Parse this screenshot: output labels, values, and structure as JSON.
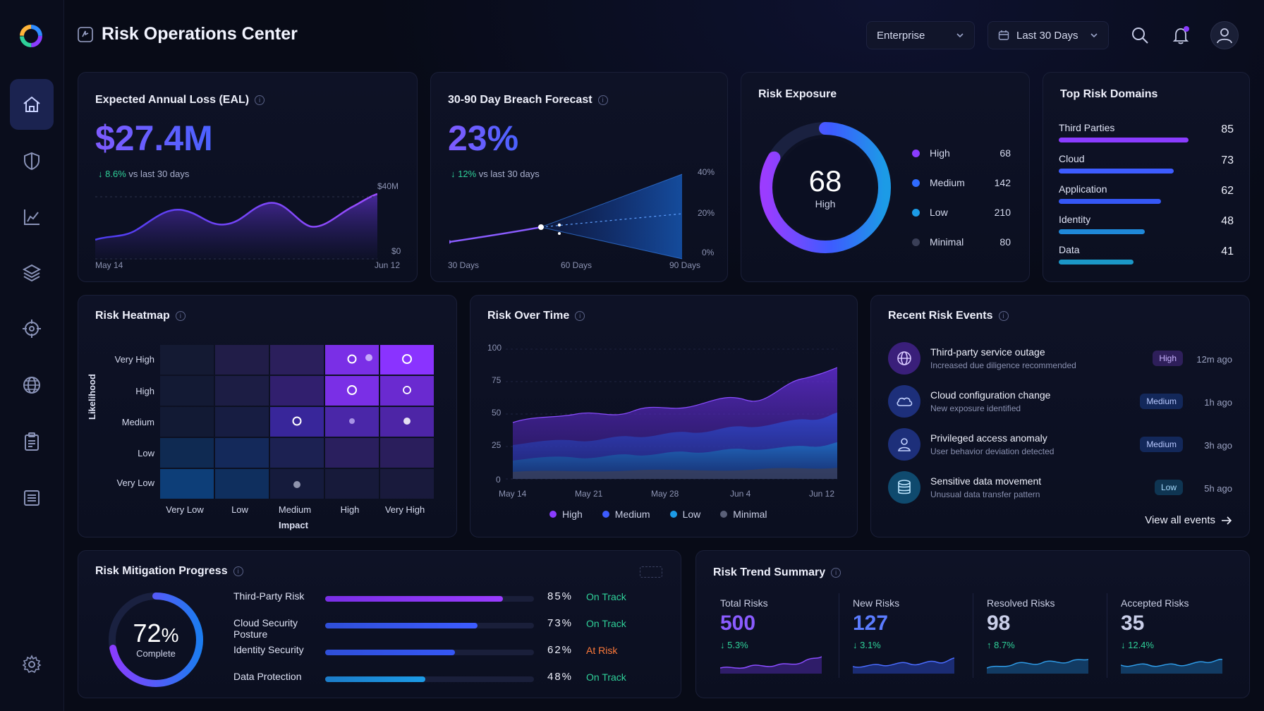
{
  "header": {
    "title": "Risk Operations Center",
    "org_select": "Enterprise",
    "date_select": "Last 30 Days"
  },
  "eal": {
    "title": "Expected Annual Loss (EAL)",
    "value": "$27.4M",
    "delta": "8.6%",
    "delta_text": "vs last 30 days",
    "y_max": "$40M",
    "y_min": "$0",
    "x_start": "May 14",
    "x_end": "Jun 12"
  },
  "forecast": {
    "title": "30-90 Day Breach Forecast",
    "value": "23%",
    "delta": "12%",
    "delta_text": "vs last 30 days",
    "y_ticks": [
      "40%",
      "20%",
      "0%"
    ],
    "x_ticks": [
      "30 Days",
      "60 Days",
      "90 Days"
    ]
  },
  "exposure": {
    "title": "Risk Exposure",
    "center_value": "68",
    "center_label": "High",
    "items": [
      {
        "label": "High",
        "value": "68",
        "color": "#8a3cff"
      },
      {
        "label": "Medium",
        "value": "142",
        "color": "#2f6bff"
      },
      {
        "label": "Low",
        "value": "210",
        "color": "#1c9be6"
      },
      {
        "label": "Minimal",
        "value": "80",
        "color": "#3a3f57"
      }
    ]
  },
  "domains": {
    "title": "Top Risk Domains",
    "items": [
      {
        "label": "Third Parties",
        "value": "85",
        "color": "#8a3cff"
      },
      {
        "label": "Cloud",
        "value": "73",
        "color": "#3d5cff"
      },
      {
        "label": "Application",
        "value": "62",
        "color": "#3557f5"
      },
      {
        "label": "Identity",
        "value": "48",
        "color": "#1f88d8"
      },
      {
        "label": "Data",
        "value": "41",
        "color": "#1b97c7"
      }
    ]
  },
  "heatmap": {
    "title": "Risk Heatmap",
    "y_title": "Likelihood",
    "x_title": "Impact",
    "rows": [
      "Very High",
      "High",
      "Medium",
      "Low",
      "Very Low"
    ],
    "cols": [
      "Very Low",
      "Low",
      "Medium",
      "High",
      "Very High"
    ]
  },
  "over_time": {
    "title": "Risk Over Time",
    "y_ticks": [
      "100",
      "75",
      "50",
      "25",
      "0"
    ],
    "x_ticks": [
      "May 14",
      "May 21",
      "May 28",
      "Jun 4",
      "Jun 12"
    ],
    "legend": [
      {
        "label": "High",
        "color": "#8a3cff"
      },
      {
        "label": "Medium",
        "color": "#3d5cff"
      },
      {
        "label": "Low",
        "color": "#1c9be6"
      },
      {
        "label": "Minimal",
        "color": "#5a6078"
      }
    ]
  },
  "events": {
    "title": "Recent Risk Events",
    "view_all": "View all events",
    "items": [
      {
        "title": "Third-party service outage",
        "sub": "Increased due diligence recommended",
        "badge": "High",
        "time": "12m ago",
        "icon": "globe-icon"
      },
      {
        "title": "Cloud configuration change",
        "sub": "New exposure identified",
        "badge": "Medium",
        "time": "1h ago",
        "icon": "cloud-icon"
      },
      {
        "title": "Privileged access anomaly",
        "sub": "User behavior deviation detected",
        "badge": "Medium",
        "time": "3h ago",
        "icon": "user-icon"
      },
      {
        "title": "Sensitive data movement",
        "sub": "Unusual data transfer pattern",
        "badge": "Low",
        "time": "5h ago",
        "icon": "database-icon"
      }
    ]
  },
  "mitigation": {
    "title": "Risk Mitigation Progress",
    "pct": "72",
    "pct_sign": "%",
    "complete_label": "Complete",
    "items": [
      {
        "label": "Third-Party Risk",
        "pct": "85%",
        "status": "On Track",
        "fraction": 0.85,
        "color": "#8a3cff"
      },
      {
        "label": "Cloud Security Posture",
        "pct": "73%",
        "status": "On Track",
        "fraction": 0.73,
        "color": "#3d5cff"
      },
      {
        "label": "Identity Security",
        "pct": "62%",
        "status": "At Risk",
        "fraction": 0.62,
        "color": "#3557f5"
      },
      {
        "label": "Data Protection",
        "pct": "48%",
        "status": "On Track",
        "fraction": 0.48,
        "color": "#1c9be6"
      }
    ]
  },
  "trend": {
    "title": "Risk Trend Summary",
    "items": [
      {
        "label": "Total Risks",
        "value": "500",
        "delta": "↓ 5.3%",
        "color": "#8a5cff"
      },
      {
        "label": "New Risks",
        "value": "127",
        "delta": "↓ 3.1%",
        "color": "#5b7cff"
      },
      {
        "label": "Resolved Risks",
        "value": "98",
        "delta": "↑ 8.7%",
        "color": "#c9cee8"
      },
      {
        "label": "Accepted Risks",
        "value": "35",
        "delta": "↓ 12.4%",
        "color": "#c9cee8"
      }
    ]
  }
}
